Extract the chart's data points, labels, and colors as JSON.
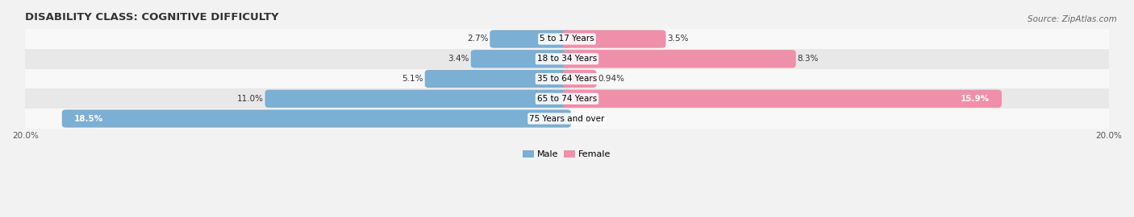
{
  "title": "DISABILITY CLASS: COGNITIVE DIFFICULTY",
  "source": "Source: ZipAtlas.com",
  "categories": [
    "5 to 17 Years",
    "18 to 34 Years",
    "35 to 64 Years",
    "65 to 74 Years",
    "75 Years and over"
  ],
  "male_values": [
    2.7,
    3.4,
    5.1,
    11.0,
    18.5
  ],
  "female_values": [
    3.5,
    8.3,
    0.94,
    15.9,
    0.0
  ],
  "male_color": "#7bafd4",
  "female_color": "#f08faa",
  "male_label": "Male",
  "female_label": "Female",
  "axis_max": 20.0,
  "bar_height": 0.6,
  "background_color": "#f2f2f2",
  "row_colors": [
    "#f8f8f8",
    "#e8e8e8"
  ],
  "title_fontsize": 9.5,
  "cat_fontsize": 7.5,
  "val_fontsize": 7.5,
  "tick_fontsize": 7.5,
  "source_fontsize": 7.5,
  "legend_fontsize": 8
}
